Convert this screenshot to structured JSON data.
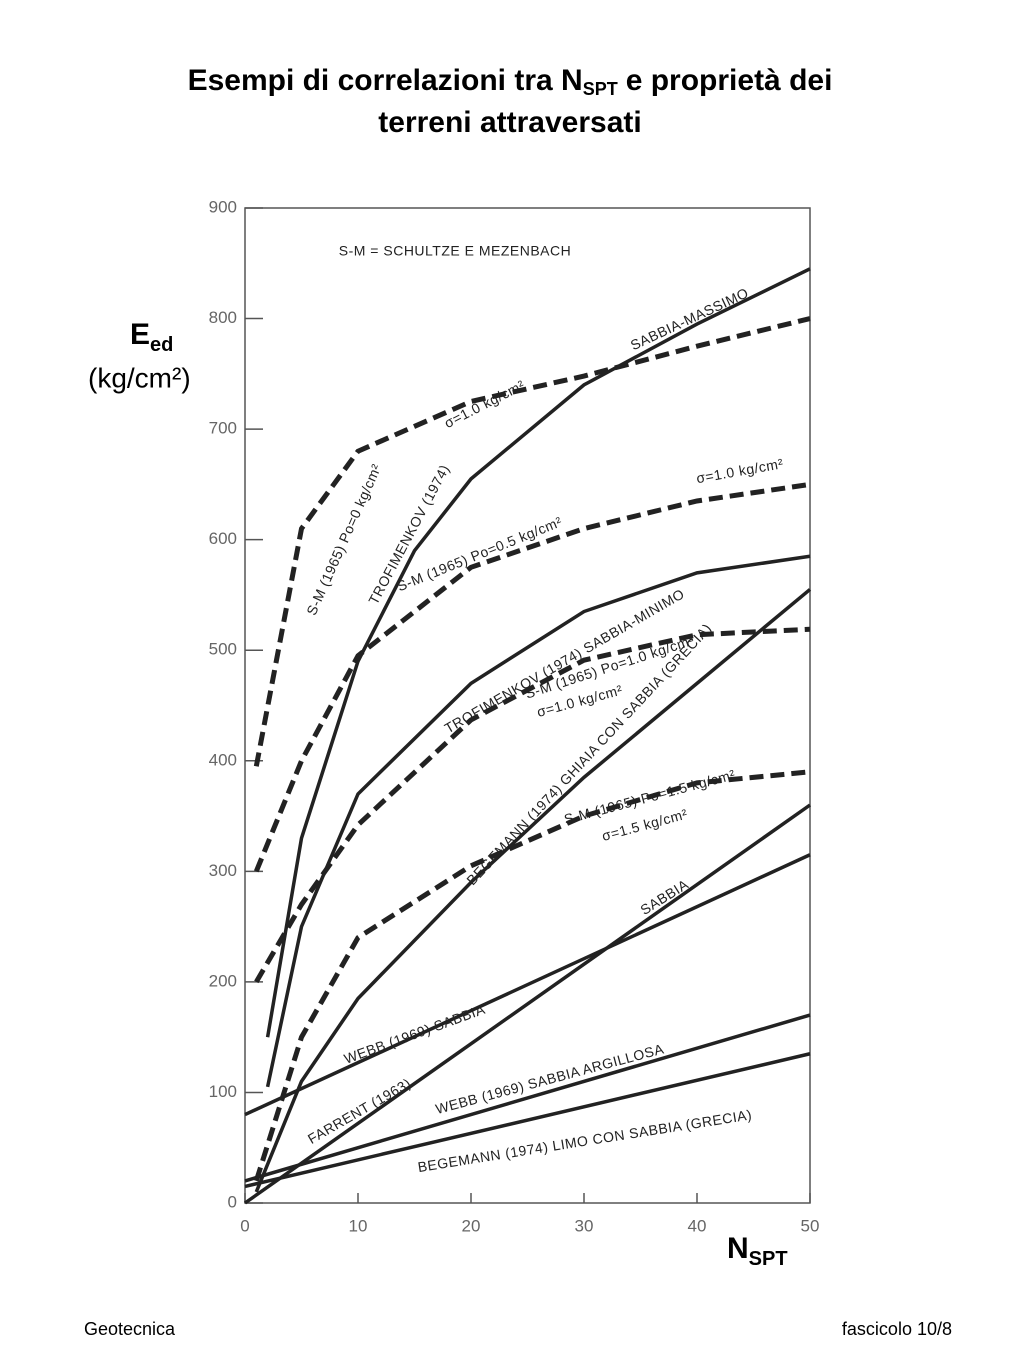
{
  "chart_data": {
    "type": "line",
    "title": {
      "main": "Esempi di correlazioni tra N",
      "sub": "SPT",
      "rest": "e proprietà dei",
      "line2": "terreni attraversati"
    },
    "y_label": {
      "main": "E",
      "sub": "ed",
      "unit": "(kg/cm²)"
    },
    "x_label": {
      "main": "N",
      "sub": "SPT"
    },
    "note": "S-M = SCHULTZE E MEZENBACH",
    "xlim": [
      0,
      50
    ],
    "xticks": [
      0,
      10,
      20,
      30,
      40,
      50
    ],
    "ylim": [
      0,
      900
    ],
    "yticks": [
      0,
      100,
      200,
      300,
      400,
      500,
      600,
      700,
      800,
      900
    ],
    "color": "#222222",
    "series": [
      {
        "name": "TROFIMENKOV (1974)",
        "note": "SABBIA-MASSIMO",
        "dashed": false,
        "x": [
          2,
          5,
          10,
          15,
          20,
          30,
          40,
          50
        ],
        "values": [
          150,
          330,
          490,
          590,
          655,
          740,
          795,
          845
        ]
      },
      {
        "name": "S-M (1965) Po=0 kg/cm²",
        "note": "σ=1.0 kg/cm²",
        "dashed": true,
        "x": [
          1,
          5,
          10,
          20,
          30,
          40,
          50
        ],
        "values": [
          395,
          610,
          680,
          725,
          748,
          775,
          800
        ]
      },
      {
        "name": "S-M (1965) Po=0.5 kg/cm²",
        "note": "σ=1.0 kg/cm²",
        "dashed": true,
        "x": [
          1,
          5,
          10,
          20,
          30,
          40,
          50
        ],
        "values": [
          300,
          400,
          495,
          575,
          610,
          635,
          650
        ]
      },
      {
        "name": "TROFIMENKOV (1974) SABBIA-MINIMO",
        "dashed": false,
        "x": [
          2,
          5,
          10,
          20,
          30,
          40,
          50
        ],
        "values": [
          105,
          250,
          370,
          470,
          535,
          570,
          585
        ]
      },
      {
        "name": "S-M (1965) Po=1.0 kg/cm²",
        "note": "σ=1.0 kg/cm²",
        "dashed": true,
        "x": [
          1,
          5,
          10,
          20,
          30,
          40,
          50
        ],
        "values": [
          200,
          270,
          342,
          437,
          491,
          514,
          519
        ]
      },
      {
        "name": "BEGEMANN (1974) GHIAIA CON SABBIA (GRECIA)",
        "dashed": false,
        "x": [
          1,
          5,
          10,
          20,
          30,
          40,
          50
        ],
        "values": [
          10,
          110,
          185,
          290,
          385,
          470,
          555
        ]
      },
      {
        "name": "S-M (1965) Po=1.5 kg/cm²",
        "note": "σ=1.5 kg/cm²",
        "dashed": true,
        "x": [
          1,
          5,
          10,
          20,
          30,
          40,
          50
        ],
        "values": [
          20,
          150,
          240,
          305,
          350,
          380,
          390
        ]
      },
      {
        "name": "WEBB (1969) SABBIA",
        "dashed": false,
        "x": [
          0,
          50
        ],
        "values": [
          80,
          315
        ]
      },
      {
        "name": "FARRENT (1963)",
        "note": "SABBIA",
        "dashed": false,
        "x": [
          0,
          50
        ],
        "values": [
          0,
          360
        ]
      },
      {
        "name": "WEBB (1969) SABBIA ARGILLOSA",
        "dashed": false,
        "x": [
          0,
          50
        ],
        "values": [
          20,
          170
        ]
      },
      {
        "name": "BEGEMANN (1974) LIMO CON SABBIA (GRECIA)",
        "dashed": false,
        "x": [
          0,
          50
        ],
        "values": [
          15,
          135
        ]
      }
    ]
  },
  "footer": {
    "left": "Geotecnica",
    "right": "fascicolo 10/8"
  }
}
